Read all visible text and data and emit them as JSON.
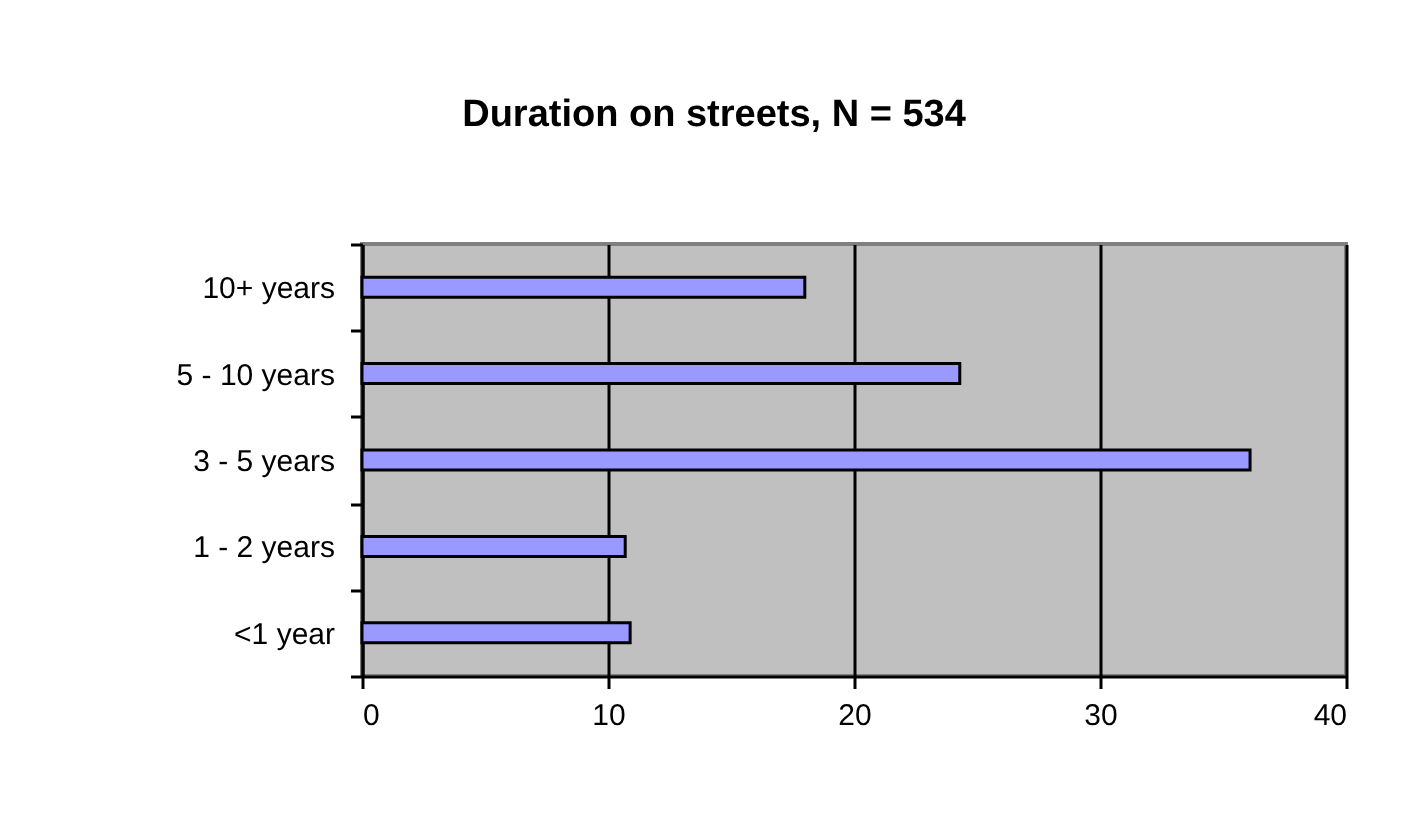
{
  "chart_data": {
    "type": "bar",
    "orientation": "horizontal",
    "title": "Duration on streets, N = 534",
    "categories": [
      "10+ years",
      "5 - 10 years",
      "3 - 5 years",
      "1 - 2 years",
      "<1 year"
    ],
    "values": [
      18.0,
      24.3,
      36.1,
      10.7,
      10.9
    ],
    "color": "#9999ff",
    "xlim": [
      0,
      40
    ],
    "xticks": [
      0,
      10,
      20,
      30,
      40
    ],
    "grid": "x"
  }
}
